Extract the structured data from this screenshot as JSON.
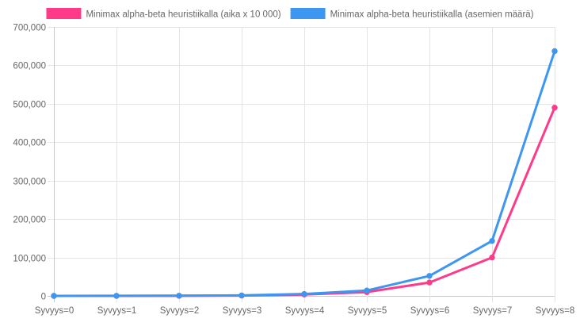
{
  "chart_data": {
    "type": "line",
    "categories": [
      "Syvyys=0",
      "Syvyys=1",
      "Syvyys=2",
      "Syvyys=3",
      "Syvyys=4",
      "Syvyys=5",
      "Syvyys=6",
      "Syvyys=7",
      "Syvyys=8"
    ],
    "series": [
      {
        "name": "Minimax alpha-beta heuristiikalla (aika x 10 000)",
        "color": "#ff3a89",
        "values": [
          0,
          0,
          200,
          800,
          3500,
          10000,
          35000,
          100000,
          490000
        ]
      },
      {
        "name": "Minimax alpha-beta heuristiikalla (asemien määrä)",
        "color": "#3d96f0",
        "values": [
          0,
          300,
          400,
          1200,
          5000,
          14000,
          52000,
          143000,
          637000
        ]
      }
    ],
    "ylim": [
      0,
      700000
    ],
    "yticks": [
      0,
      100000,
      200000,
      300000,
      400000,
      500000,
      600000,
      700000
    ],
    "ytick_labels": [
      "0",
      "100,000",
      "200,000",
      "300,000",
      "400,000",
      "500,000",
      "600,000",
      "700,000"
    ],
    "grid": true,
    "legend_position": "top"
  }
}
